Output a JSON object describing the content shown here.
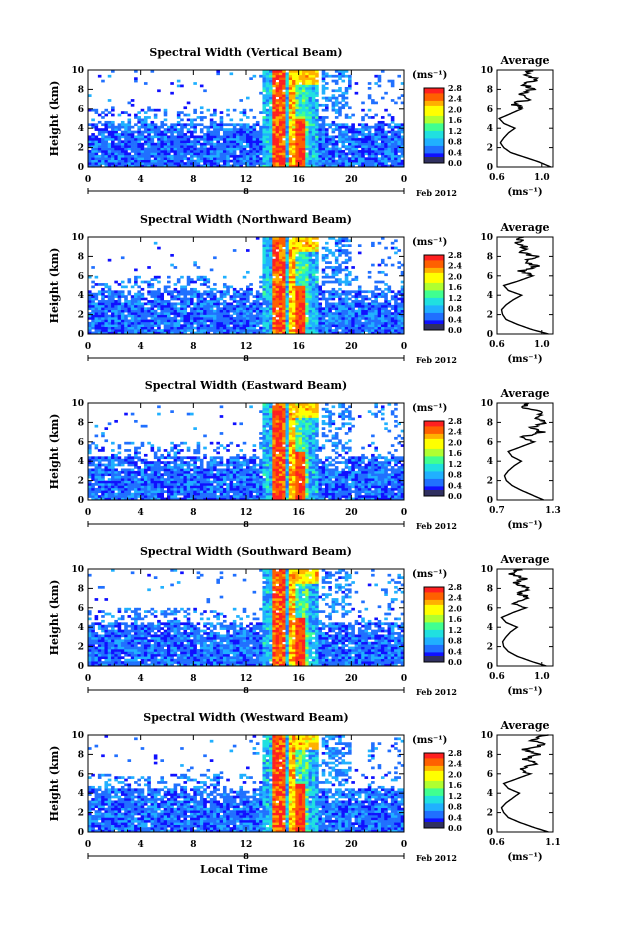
{
  "colors": {
    "scale": [
      "#303060",
      "#1010ff",
      "#2070ff",
      "#20b0ff",
      "#20e0e0",
      "#40ff90",
      "#b0ff30",
      "#ffff00",
      "#ffb000",
      "#ff6000",
      "#ff2020"
    ]
  },
  "chart_data": [
    {
      "type": "heatmap",
      "title": "Spectral Width (Vertical Beam)",
      "ylabel": "Height (km)",
      "xlabel": "",
      "date_label": "Feb 2012",
      "day_label": "8",
      "x_ticks": [
        "0",
        "4",
        "8",
        "12",
        "16",
        "20",
        "0"
      ],
      "y_ticks": [
        "0",
        "2",
        "4",
        "6",
        "8",
        "10"
      ],
      "xlim": [
        0,
        24
      ],
      "ylim": [
        0,
        10
      ],
      "colorbar": {
        "unit": "(ms⁻¹)",
        "labels": [
          "0.0",
          "0.4",
          "0.8",
          "1.2",
          "1.6",
          "2.0",
          "2.4",
          "2.8"
        ],
        "range": [
          0,
          2.8
        ]
      },
      "profile": {
        "title": "Average",
        "xlabel": "(ms⁻¹)",
        "x_ticks": [
          "0.6",
          "1.0"
        ],
        "xlim": [
          0.6,
          1.1
        ],
        "y_ticks": [
          "0",
          "2",
          "4",
          "6",
          "8",
          "10"
        ],
        "height": [
          0,
          0.5,
          1,
          1.5,
          2,
          2.5,
          3,
          3.5,
          4,
          4.5,
          5,
          5.5,
          6,
          6.5,
          7,
          7.5,
          8,
          8.5,
          9,
          9.5,
          10
        ],
        "width": [
          1.08,
          0.98,
          0.85,
          0.72,
          0.66,
          0.63,
          0.66,
          0.7,
          0.76,
          0.66,
          0.62,
          0.72,
          0.82,
          0.75,
          0.88,
          0.8,
          0.92,
          0.84,
          0.96,
          0.86,
          0.9
        ]
      }
    },
    {
      "type": "heatmap",
      "title": "Spectral Width (Northward Beam)",
      "ylabel": "Height (km)",
      "xlabel": "",
      "date_label": "Feb 2012",
      "day_label": "8",
      "x_ticks": [
        "0",
        "4",
        "8",
        "12",
        "16",
        "20",
        "0"
      ],
      "y_ticks": [
        "0",
        "2",
        "4",
        "6",
        "8",
        "10"
      ],
      "xlim": [
        0,
        24
      ],
      "ylim": [
        0,
        10
      ],
      "colorbar": {
        "unit": "(ms⁻¹)",
        "labels": [
          "0.0",
          "0.4",
          "0.8",
          "1.2",
          "1.6",
          "2.0",
          "2.4",
          "2.8"
        ],
        "range": [
          0,
          2.8
        ]
      },
      "profile": {
        "title": "Average",
        "xlabel": "(ms⁻¹)",
        "x_ticks": [
          "0.6",
          "1.0"
        ],
        "xlim": [
          0.6,
          1.1
        ],
        "y_ticks": [
          "0",
          "2",
          "4",
          "6",
          "8",
          "10"
        ],
        "height": [
          0,
          0.5,
          1,
          1.5,
          2,
          2.5,
          3,
          3.5,
          4,
          4.5,
          5,
          5.5,
          6,
          6.5,
          7,
          7.5,
          8,
          8.5,
          9,
          9.5,
          10
        ],
        "width": [
          1.06,
          0.9,
          0.78,
          0.68,
          0.65,
          0.64,
          0.68,
          0.74,
          0.82,
          0.7,
          0.66,
          0.8,
          0.92,
          0.82,
          0.96,
          0.84,
          0.94,
          0.8,
          0.86,
          0.78,
          0.84
        ]
      }
    },
    {
      "type": "heatmap",
      "title": "Spectral Width (Eastward Beam)",
      "ylabel": "Height (km)",
      "xlabel": "",
      "date_label": "Feb 2012",
      "day_label": "8",
      "x_ticks": [
        "0",
        "4",
        "8",
        "12",
        "16",
        "20",
        "0"
      ],
      "y_ticks": [
        "0",
        "2",
        "4",
        "6",
        "8",
        "10"
      ],
      "xlim": [
        0,
        24
      ],
      "ylim": [
        0,
        10
      ],
      "colorbar": {
        "unit": "(ms⁻¹)",
        "labels": [
          "0.0",
          "0.4",
          "0.8",
          "1.2",
          "1.6",
          "2.0",
          "2.4",
          "2.8"
        ],
        "range": [
          0,
          2.8
        ]
      },
      "profile": {
        "title": "Average",
        "xlabel": "(ms⁻¹)",
        "x_ticks": [
          "0.7",
          "1.3"
        ],
        "xlim": [
          0.7,
          1.3
        ],
        "y_ticks": [
          "0",
          "2",
          "4",
          "6",
          "8",
          "10"
        ],
        "height": [
          0,
          0.5,
          1,
          1.5,
          2,
          2.5,
          3,
          3.5,
          4,
          4.5,
          5,
          5.5,
          6,
          6.5,
          7,
          7.5,
          8,
          8.5,
          9,
          9.5,
          10
        ],
        "width": [
          1.2,
          1.08,
          0.96,
          0.86,
          0.8,
          0.78,
          0.82,
          0.88,
          0.96,
          0.86,
          0.82,
          0.96,
          1.1,
          0.98,
          1.18,
          1.06,
          1.24,
          1.1,
          1.2,
          0.98,
          1.04
        ]
      }
    },
    {
      "type": "heatmap",
      "title": "Spectral Width (Southward Beam)",
      "ylabel": "Height (km)",
      "xlabel": "",
      "date_label": "Feb 2012",
      "day_label": "8",
      "x_ticks": [
        "0",
        "4",
        "8",
        "12",
        "16",
        "20",
        "0"
      ],
      "y_ticks": [
        "0",
        "2",
        "4",
        "6",
        "8",
        "10"
      ],
      "xlim": [
        0,
        24
      ],
      "ylim": [
        0,
        10
      ],
      "colorbar": {
        "unit": "(ms⁻¹)",
        "labels": [
          "0.0",
          "0.4",
          "0.8",
          "1.2",
          "1.6",
          "2.0",
          "2.4",
          "2.8"
        ],
        "range": [
          0,
          2.8
        ]
      },
      "profile": {
        "title": "Average",
        "xlabel": "(ms⁻¹)",
        "x_ticks": [
          "0.6",
          "1.0"
        ],
        "xlim": [
          0.6,
          1.1
        ],
        "y_ticks": [
          "0",
          "2",
          "4",
          "6",
          "8",
          "10"
        ],
        "height": [
          0,
          0.5,
          1,
          1.5,
          2,
          2.5,
          3,
          3.5,
          4,
          4.5,
          5,
          5.5,
          6,
          6.5,
          7,
          7.5,
          8,
          8.5,
          9,
          9.5,
          10
        ],
        "width": [
          1.04,
          0.9,
          0.78,
          0.7,
          0.66,
          0.65,
          0.68,
          0.72,
          0.78,
          0.68,
          0.64,
          0.74,
          0.86,
          0.76,
          0.9,
          0.8,
          0.88,
          0.76,
          0.84,
          0.74,
          0.8
        ]
      }
    },
    {
      "type": "heatmap",
      "title": "Spectral Width (Westward Beam)",
      "ylabel": "Height (km)",
      "xlabel": "Local Time",
      "date_label": "Feb 2012",
      "day_label": "8",
      "x_ticks": [
        "0",
        "4",
        "8",
        "12",
        "16",
        "20",
        "0"
      ],
      "y_ticks": [
        "0",
        "2",
        "4",
        "6",
        "8",
        "10"
      ],
      "xlim": [
        0,
        24
      ],
      "ylim": [
        0,
        10
      ],
      "colorbar": {
        "unit": "(ms⁻¹)",
        "labels": [
          "0.0",
          "0.4",
          "0.8",
          "1.2",
          "1.6",
          "2.0",
          "2.4",
          "2.8"
        ],
        "range": [
          0,
          2.8
        ]
      },
      "profile": {
        "title": "Average",
        "xlabel": "(ms⁻¹)",
        "x_ticks": [
          "0.6",
          "1.1"
        ],
        "xlim": [
          0.6,
          1.1
        ],
        "y_ticks": [
          "0",
          "2",
          "4",
          "6",
          "8",
          "10"
        ],
        "height": [
          0,
          0.5,
          1,
          1.5,
          2,
          2.5,
          3,
          3.5,
          4,
          4.5,
          5,
          5.5,
          6,
          6.5,
          7,
          7.5,
          8,
          8.5,
          9,
          9.5,
          10
        ],
        "width": [
          1.06,
          0.92,
          0.8,
          0.7,
          0.66,
          0.64,
          0.68,
          0.74,
          0.8,
          0.7,
          0.66,
          0.78,
          0.9,
          0.8,
          0.96,
          0.84,
          0.98,
          0.86,
          1.02,
          0.9,
          1.06
        ]
      }
    }
  ]
}
